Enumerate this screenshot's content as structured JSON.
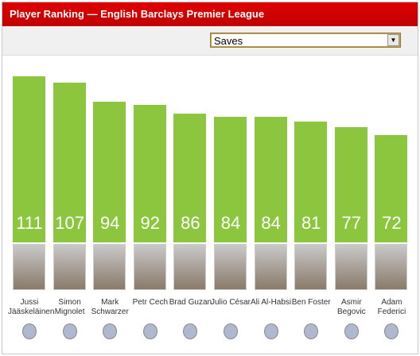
{
  "header": {
    "title": "Player Ranking — English Barclays Premier League"
  },
  "selector": {
    "selected": "Saves"
  },
  "chart_data": {
    "type": "bar",
    "categories": [
      "Jussi Jääskeläinen",
      "Simon Mignolet",
      "Mark Schwarzer",
      "Petr Cech",
      "Brad Guzan",
      "Julio César",
      "Ali Al-Habsi",
      "Ben Foster",
      "Asmir Begovic",
      "Adam Federici"
    ],
    "values": [
      111,
      107,
      94,
      92,
      86,
      84,
      84,
      81,
      77,
      72
    ],
    "color": "#8cc63f"
  }
}
